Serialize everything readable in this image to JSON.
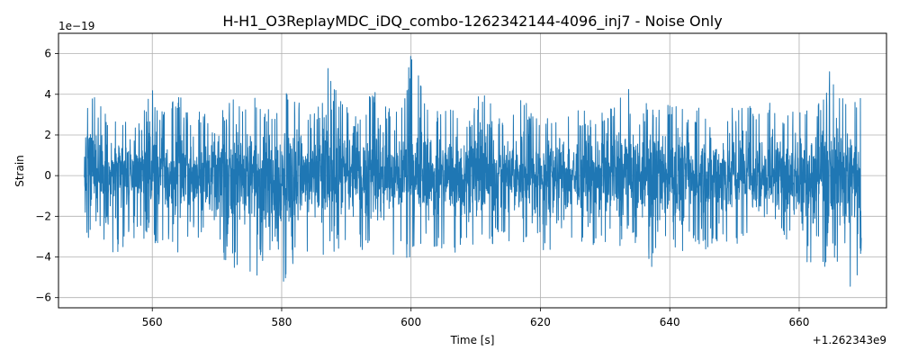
{
  "chart_data": {
    "type": "line",
    "title": "H-H1_O3ReplayMDC_iDQ_combo-1262342144-4096_inj7 - Noise Only",
    "xlabel": "Time [s]",
    "ylabel": "Strain",
    "x_offset_label": "+1.262343e9",
    "y_scale_label": "1e−19",
    "xlim": [
      545.5,
      673.5
    ],
    "ylim": [
      -6.5,
      7.0
    ],
    "x_range": [
      549.5,
      669.6
    ],
    "x_ticks": [
      560,
      580,
      600,
      620,
      640,
      660
    ],
    "x_tick_labels": [
      "560",
      "580",
      "600",
      "620",
      "640",
      "660"
    ],
    "y_ticks": [
      -6,
      -4,
      -2,
      0,
      2,
      4,
      6
    ],
    "y_tick_labels": [
      "−6",
      "−4",
      "−2",
      "0",
      "2",
      "4",
      "6"
    ],
    "grid": true,
    "colors": {
      "series": "#1f77b4"
    },
    "series": [
      {
        "name": "",
        "peaks_upper": [
          [
            549.5,
            4.4
          ],
          [
            550.5,
            4.2
          ],
          [
            552.0,
            3.5
          ],
          [
            554.0,
            3.0
          ],
          [
            556.5,
            3.2
          ],
          [
            558.0,
            2.8
          ],
          [
            560.0,
            4.4
          ],
          [
            562.0,
            3.0
          ],
          [
            564.0,
            4.1
          ],
          [
            566.0,
            3.0
          ],
          [
            568.0,
            3.2
          ],
          [
            570.0,
            3.0
          ],
          [
            572.5,
            3.8
          ],
          [
            574.0,
            3.2
          ],
          [
            575.5,
            4.7
          ],
          [
            577.0,
            3.6
          ],
          [
            579.0,
            3.0
          ],
          [
            580.5,
            4.3
          ],
          [
            582.5,
            3.8
          ],
          [
            584.0,
            3.0
          ],
          [
            585.5,
            3.2
          ],
          [
            587.0,
            5.9
          ],
          [
            589.0,
            3.8
          ],
          [
            591.0,
            3.0
          ],
          [
            593.0,
            3.6
          ],
          [
            595.0,
            4.7
          ],
          [
            597.0,
            3.0
          ],
          [
            598.5,
            3.8
          ],
          [
            600.0,
            6.3
          ],
          [
            601.5,
            4.5
          ],
          [
            603.0,
            3.6
          ],
          [
            605.0,
            3.2
          ],
          [
            607.0,
            3.6
          ],
          [
            609.0,
            3.0
          ],
          [
            611.0,
            4.3
          ],
          [
            613.0,
            3.2
          ],
          [
            615.0,
            3.0
          ],
          [
            617.0,
            4.2
          ],
          [
            619.0,
            3.0
          ],
          [
            621.0,
            3.0
          ],
          [
            623.0,
            3.6
          ],
          [
            625.0,
            3.2
          ],
          [
            627.0,
            3.2
          ],
          [
            629.0,
            3.0
          ],
          [
            631.0,
            3.4
          ],
          [
            633.0,
            5.4
          ],
          [
            635.0,
            3.2
          ],
          [
            637.0,
            3.8
          ],
          [
            639.0,
            3.2
          ],
          [
            641.0,
            4.0
          ],
          [
            643.0,
            3.2
          ],
          [
            645.0,
            3.4
          ],
          [
            647.0,
            4.2
          ],
          [
            649.0,
            3.0
          ],
          [
            651.0,
            4.3
          ],
          [
            653.0,
            3.2
          ],
          [
            655.0,
            4.1
          ],
          [
            657.0,
            3.2
          ],
          [
            659.0,
            3.4
          ],
          [
            661.0,
            4.0
          ],
          [
            663.0,
            3.8
          ],
          [
            664.5,
            5.4
          ],
          [
            666.0,
            3.8
          ],
          [
            668.0,
            4.0
          ],
          [
            669.6,
            4.5
          ]
        ],
        "peaks_lower": [
          [
            549.5,
            -2.8
          ],
          [
            550.5,
            -3.2
          ],
          [
            552.0,
            -2.8
          ],
          [
            554.0,
            -4.1
          ],
          [
            556.5,
            -3.2
          ],
          [
            558.0,
            -3.0
          ],
          [
            560.0,
            -3.4
          ],
          [
            562.0,
            -3.2
          ],
          [
            564.0,
            -3.8
          ],
          [
            566.0,
            -3.0
          ],
          [
            568.0,
            -3.2
          ],
          [
            570.0,
            -3.6
          ],
          [
            572.5,
            -5.1
          ],
          [
            574.0,
            -3.6
          ],
          [
            575.5,
            -5.3
          ],
          [
            577.0,
            -4.5
          ],
          [
            579.0,
            -3.6
          ],
          [
            580.5,
            -5.6
          ],
          [
            582.5,
            -3.6
          ],
          [
            584.0,
            -4.5
          ],
          [
            585.5,
            -5.0
          ],
          [
            587.0,
            -4.4
          ],
          [
            589.0,
            -3.6
          ],
          [
            591.0,
            -4.0
          ],
          [
            593.0,
            -3.6
          ],
          [
            595.0,
            -3.4
          ],
          [
            597.0,
            -4.5
          ],
          [
            598.5,
            -3.6
          ],
          [
            600.0,
            -4.6
          ],
          [
            601.5,
            -3.8
          ],
          [
            603.0,
            -3.6
          ],
          [
            605.0,
            -3.6
          ],
          [
            607.0,
            -3.8
          ],
          [
            609.0,
            -3.2
          ],
          [
            611.0,
            -4.4
          ],
          [
            613.0,
            -3.4
          ],
          [
            615.0,
            -3.2
          ],
          [
            617.0,
            -3.6
          ],
          [
            619.0,
            -3.0
          ],
          [
            621.0,
            -4.1
          ],
          [
            623.0,
            -3.2
          ],
          [
            625.0,
            -3.6
          ],
          [
            627.0,
            -3.2
          ],
          [
            629.0,
            -3.6
          ],
          [
            631.0,
            -3.2
          ],
          [
            633.0,
            -4.2
          ],
          [
            635.0,
            -3.2
          ],
          [
            637.0,
            -4.8
          ],
          [
            639.0,
            -3.6
          ],
          [
            641.0,
            -4.2
          ],
          [
            643.0,
            -3.2
          ],
          [
            645.0,
            -3.8
          ],
          [
            647.0,
            -3.2
          ],
          [
            649.0,
            -3.6
          ],
          [
            651.0,
            -3.4
          ],
          [
            653.0,
            -3.2
          ],
          [
            655.0,
            -3.6
          ],
          [
            657.0,
            -3.4
          ],
          [
            659.0,
            -3.6
          ],
          [
            661.0,
            -4.4
          ],
          [
            663.0,
            -4.6
          ],
          [
            664.5,
            -4.5
          ],
          [
            666.0,
            -4.3
          ],
          [
            667.5,
            -5.9
          ],
          [
            669.6,
            -4.5
          ]
        ]
      }
    ]
  }
}
